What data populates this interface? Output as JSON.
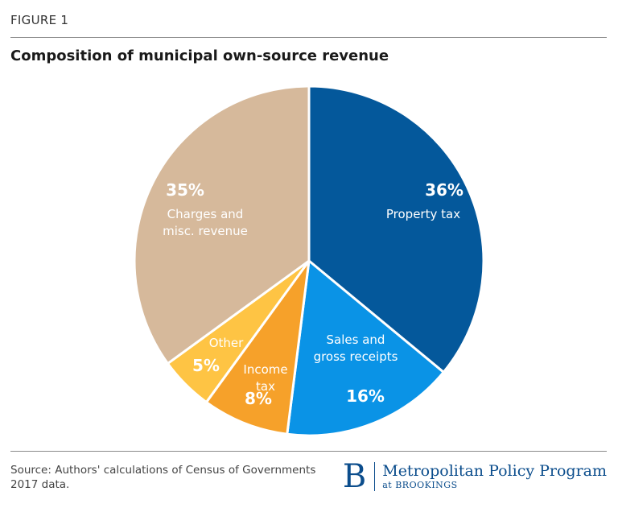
{
  "header": {
    "figure_label": "FIGURE 1"
  },
  "chart_data": {
    "type": "pie",
    "title": "Composition of municipal own-source revenue",
    "slices": [
      {
        "name": "Property tax",
        "label_lines": [
          "Property tax"
        ],
        "value": 36,
        "value_label": "36%",
        "color": "#04589b"
      },
      {
        "name": "Sales and gross receipts",
        "label_lines": [
          "Sales and",
          "gross receipts"
        ],
        "value": 16,
        "value_label": "16%",
        "color": "#0a93e6"
      },
      {
        "name": "Income tax",
        "label_lines": [
          "Income",
          "tax"
        ],
        "value": 8,
        "value_label": "8%",
        "color": "#f6a12a"
      },
      {
        "name": "Other",
        "label_lines": [
          "Other"
        ],
        "value": 5,
        "value_label": "5%",
        "color": "#fec444"
      },
      {
        "name": "Charges and misc. revenue",
        "label_lines": [
          "Charges and",
          "misc. revenue"
        ],
        "value": 35,
        "value_label": "35%",
        "color": "#d6b99b"
      }
    ]
  },
  "footer": {
    "source": "Source: Authors' calculations of Census of Governments 2017 data.",
    "brand_mark": "B",
    "brand_name": "Metropolitan Policy Program",
    "brand_sub": "at BROOKINGS"
  }
}
